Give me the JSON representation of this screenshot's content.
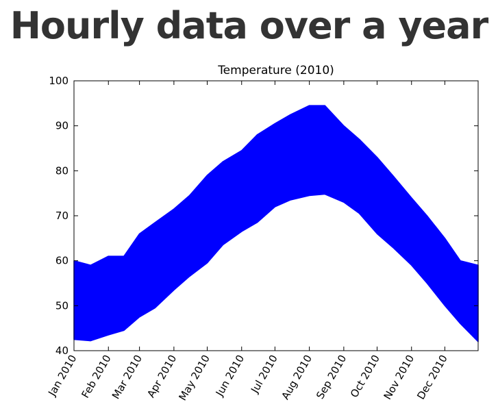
{
  "slide": {
    "title": "Hourly data over a year"
  },
  "chart_data": {
    "type": "area",
    "title": "Temperature (2010)",
    "xlabel": "",
    "ylabel": "",
    "ylim": [
      40,
      100
    ],
    "yticks": [
      40,
      50,
      60,
      70,
      80,
      90,
      100
    ],
    "xlim": [
      "2010-01-01",
      "2010-12-31"
    ],
    "xticks": [
      "2010-01-01",
      "2010-02-01",
      "2010-03-01",
      "2010-04-01",
      "2010-05-01",
      "2010-06-01",
      "2010-07-01",
      "2010-08-01",
      "2010-09-01",
      "2010-10-01",
      "2010-11-01",
      "2010-12-01"
    ],
    "xtick_labels": [
      "Jan 2010",
      "Feb 2010",
      "Mar 2010",
      "Apr 2010",
      "May 2010",
      "Jun 2010",
      "Jul 2010",
      "Aug 2010",
      "Sep 2010",
      "Oct 2010",
      "Nov 2010",
      "Dec 2010"
    ],
    "grid": false,
    "fill_color": "#0000ff",
    "x": [
      "2010-01-01",
      "2010-01-16",
      "2010-02-01",
      "2010-02-15",
      "2010-03-01",
      "2010-03-15",
      "2010-04-01",
      "2010-04-15",
      "2010-05-01",
      "2010-05-15",
      "2010-06-01",
      "2010-06-15",
      "2010-07-01",
      "2010-07-15",
      "2010-08-01",
      "2010-08-15",
      "2010-09-01",
      "2010-09-15",
      "2010-10-01",
      "2010-10-15",
      "2010-11-01",
      "2010-11-15",
      "2010-12-01",
      "2010-12-15",
      "2010-12-31"
    ],
    "series": [
      {
        "values_low": [
          42.5,
          42.2,
          43.5,
          44.5,
          47.5,
          49.5,
          53.5,
          56.5,
          59.5,
          63.5,
          66.5,
          68.5,
          72.0,
          73.5,
          74.5,
          74.8,
          73.0,
          70.5,
          66.0,
          63.0,
          59.0,
          55.0,
          50.0,
          46.0,
          42.0
        ],
        "values_high": [
          60.0,
          59.0,
          61.0,
          61.0,
          66.0,
          68.5,
          71.5,
          74.5,
          79.0,
          82.0,
          84.5,
          88.0,
          90.5,
          92.5,
          94.5,
          94.5,
          90.0,
          87.0,
          83.0,
          79.0,
          74.0,
          70.0,
          65.0,
          60.0,
          59.0
        ]
      }
    ]
  }
}
